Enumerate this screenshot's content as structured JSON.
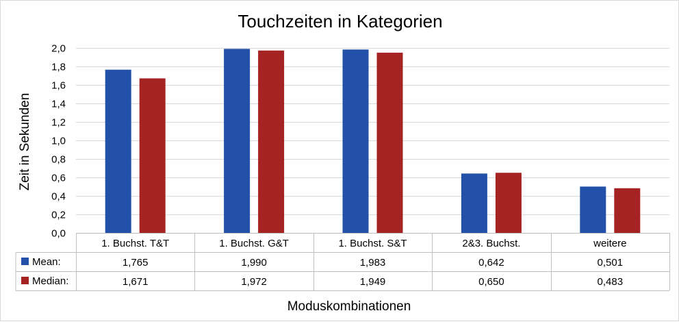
{
  "chart_data": {
    "type": "bar",
    "title": "Touchzeiten in Kategorien",
    "xlabel": "Moduskombinationen",
    "ylabel": "Zeit in Sekunden",
    "ylim": [
      0,
      2.0
    ],
    "yticks": [
      "0,0",
      "0,2",
      "0,4",
      "0,6",
      "0,8",
      "1,0",
      "1,2",
      "1,4",
      "1,6",
      "1,8",
      "2,0"
    ],
    "grid": true,
    "legend": "data table",
    "categories": [
      "1. Buchst. T&T",
      "1. Buchst. G&T",
      "1. Buchst. S&T",
      "2&3. Buchst.",
      "weitere"
    ],
    "series": [
      {
        "name": "Mean:",
        "color": "#2350a8",
        "values": [
          1.765,
          1.99,
          1.983,
          0.642,
          0.501
        ],
        "labels": [
          "1,765",
          "1,990",
          "1,983",
          "0,642",
          "0,501"
        ]
      },
      {
        "name": "Median:",
        "color": "#a52423",
        "values": [
          1.671,
          1.972,
          1.949,
          0.65,
          0.483
        ],
        "labels": [
          "1,671",
          "1,972",
          "1,949",
          "0,650",
          "0,483"
        ]
      }
    ]
  }
}
